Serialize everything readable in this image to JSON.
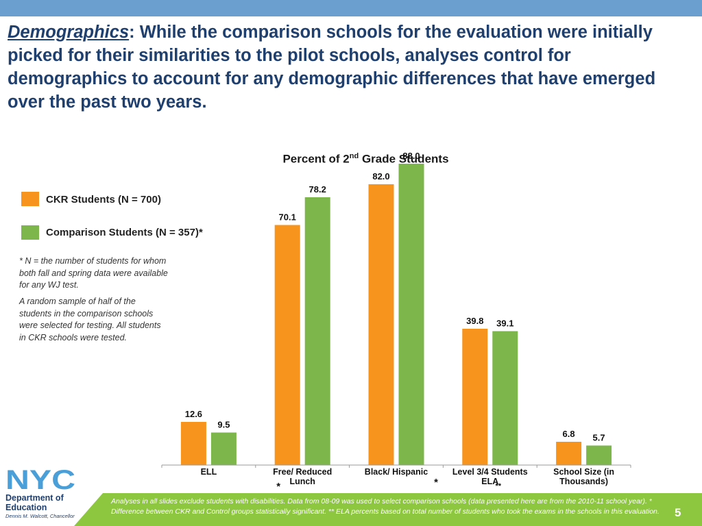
{
  "header": {
    "title_lead": "Demographics",
    "title_rest": ": While the comparison schools for the evaluation were initially picked for their similarities to the pilot schools, analyses control for demographics to account for any demographic differences that have emerged over the past two years."
  },
  "colors": {
    "series1": "#f7941d",
    "series2": "#7db64a",
    "accent": "#6a9fcf",
    "footer": "#8dc63f",
    "title_text": "#1f3f6e"
  },
  "chart_data": {
    "type": "bar",
    "title": "Percent of 2nd Grade Students",
    "title_main": "Percent of 2",
    "title_sup": "nd",
    "title_tail": " Grade Students",
    "categories": [
      "ELL",
      "Free/ Reduced Lunch",
      "Black/ Hispanic",
      "Level 3/4 Students ELA",
      "School Size (in Thousands)"
    ],
    "category_label_lines": [
      [
        "ELL"
      ],
      [
        "Free/ Reduced",
        "Lunch"
      ],
      [
        "Black/ Hispanic"
      ],
      [
        "Level 3/4 Students",
        "ELA"
      ],
      [
        "School Size (in",
        "Thousands)"
      ]
    ],
    "category_markers": [
      "",
      "*",
      "*",
      "**",
      ""
    ],
    "series": [
      {
        "name": "CKR Students (N = 700)",
        "values": [
          12.6,
          70.1,
          82.0,
          39.8,
          6.8
        ],
        "labels": [
          "12.6",
          "70.1",
          "82.0",
          "39.8",
          "6.8"
        ]
      },
      {
        "name": "Comparison Students (N = 357)*",
        "values": [
          9.5,
          78.2,
          88.0,
          39.1,
          5.7
        ],
        "labels": [
          "9.5",
          "78.2",
          "88.0",
          "39.1",
          "5.7"
        ]
      }
    ],
    "ylim": [
      0,
      100
    ],
    "grid": false,
    "legend": "left"
  },
  "notes": {
    "n_definition": "* N = the number of students for whom both fall and spring data were available for any WJ test.",
    "sampling": "A random sample of half of the students in the comparison schools were selected for testing. All students in CKR schools were tested."
  },
  "footer": {
    "text": "Analyses in all slides exclude students with disabilities. Data from 08-09 was used to select comparison schools (data presented here are from the 2010-11 school year). * Difference between CKR and Control groups statistically significant. ** ELA percents based on total number of students who took the exams in the schools in this evaluation.",
    "page_number": "5"
  },
  "logo": {
    "wordmark": "NYC",
    "department": "Department of Education",
    "chancellor": "Dennis M. Walcott, Chancellor"
  }
}
